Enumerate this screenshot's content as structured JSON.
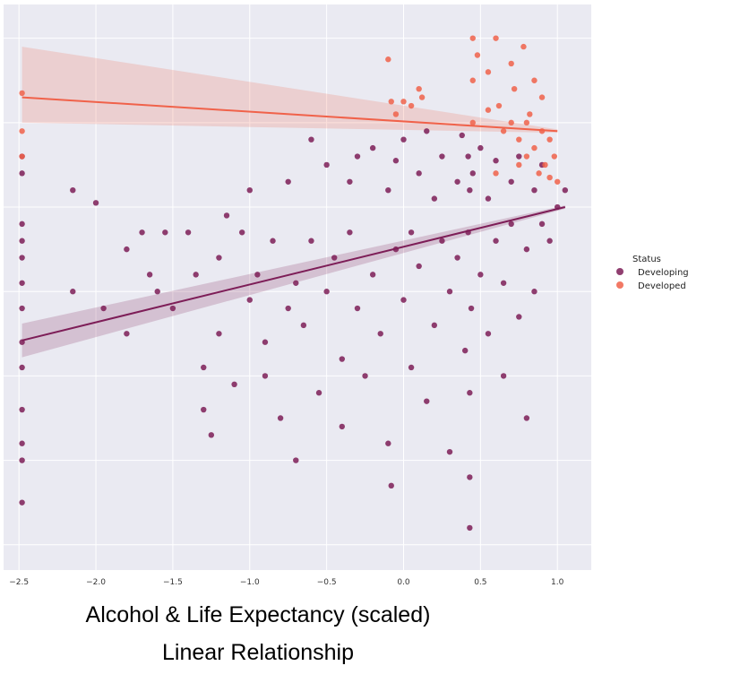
{
  "caption": {
    "line1": "Alcohol & Life Expectancy (scaled)",
    "line2": "Linear Relationship"
  },
  "chart_data": {
    "type": "scatter",
    "title": "",
    "xlabel": "",
    "ylabel": "",
    "xlim": [
      -2.6,
      1.22
    ],
    "ylim": [
      -4.3,
      2.4
    ],
    "x_ticks": [
      -2.5,
      -2.0,
      -1.5,
      -1.0,
      -0.5,
      0.0,
      0.5,
      1.0
    ],
    "x_tick_labels": [
      "−2.5",
      "−2.0",
      "−1.5",
      "−1.0",
      "−0.5",
      "0.0",
      "0.5",
      "1.0"
    ],
    "y_gridlines": [
      -4,
      -3,
      -2,
      -1,
      0,
      1,
      2
    ],
    "grid": true,
    "background_color": "#eaeaf2",
    "legend": {
      "title": "Status",
      "placement": "right",
      "entries": [
        "Developing",
        "Developed"
      ]
    },
    "series": [
      {
        "name": "Developing",
        "color": "#7d1d57",
        "regression": {
          "x": [
            -2.48,
            1.05
          ],
          "y": [
            -1.58,
            0.0
          ]
        },
        "ci_upper": [
          -1.38,
          0.02
        ],
        "ci_lower": [
          -1.78,
          -0.02
        ],
        "points": [
          [
            -2.48,
            -0.6
          ],
          [
            -2.48,
            -0.2
          ],
          [
            -2.48,
            0.4
          ],
          [
            -2.48,
            0.6
          ],
          [
            -2.48,
            -0.9
          ],
          [
            -2.48,
            -1.2
          ],
          [
            -2.48,
            -1.6
          ],
          [
            -2.48,
            -2.4
          ],
          [
            -2.48,
            -3.0
          ],
          [
            -2.48,
            -3.5
          ],
          [
            -2.48,
            -2.8
          ],
          [
            -2.48,
            -1.9
          ],
          [
            -2.48,
            -0.4
          ],
          [
            -2.15,
            0.2
          ],
          [
            -2.15,
            -1.0
          ],
          [
            -2.0,
            0.05
          ],
          [
            -1.95,
            -1.2
          ],
          [
            -1.8,
            -0.5
          ],
          [
            -1.8,
            -1.5
          ],
          [
            -1.7,
            -0.3
          ],
          [
            -1.65,
            -0.8
          ],
          [
            -1.6,
            -1.0
          ],
          [
            -1.55,
            -0.3
          ],
          [
            -1.5,
            -1.2
          ],
          [
            -1.4,
            -0.3
          ],
          [
            -1.35,
            -0.8
          ],
          [
            -1.3,
            -1.9
          ],
          [
            -1.3,
            -2.4
          ],
          [
            -1.25,
            -2.7
          ],
          [
            -1.2,
            -0.6
          ],
          [
            -1.2,
            -1.5
          ],
          [
            -1.15,
            -0.1
          ],
          [
            -1.1,
            -2.1
          ],
          [
            -1.05,
            -0.3
          ],
          [
            -1.0,
            0.2
          ],
          [
            -1.0,
            -1.1
          ],
          [
            -0.95,
            -0.8
          ],
          [
            -0.9,
            -1.6
          ],
          [
            -0.9,
            -2.0
          ],
          [
            -0.85,
            -0.4
          ],
          [
            -0.8,
            -2.5
          ],
          [
            -0.75,
            -1.2
          ],
          [
            -0.75,
            0.3
          ],
          [
            -0.7,
            -0.9
          ],
          [
            -0.7,
            -3.0
          ],
          [
            -0.65,
            -1.4
          ],
          [
            -0.6,
            -0.4
          ],
          [
            -0.6,
            0.8
          ],
          [
            -0.55,
            -2.2
          ],
          [
            -0.5,
            -1.0
          ],
          [
            -0.5,
            0.5
          ],
          [
            -0.45,
            -0.6
          ],
          [
            -0.4,
            -1.8
          ],
          [
            -0.4,
            -2.6
          ],
          [
            -0.35,
            0.3
          ],
          [
            -0.35,
            -0.3
          ],
          [
            -0.3,
            -1.2
          ],
          [
            -0.3,
            0.6
          ],
          [
            -0.25,
            -2.0
          ],
          [
            -0.2,
            -0.8
          ],
          [
            -0.2,
            0.7
          ],
          [
            -0.15,
            -1.5
          ],
          [
            -0.1,
            0.2
          ],
          [
            -0.1,
            -2.8
          ],
          [
            -0.08,
            -3.3
          ],
          [
            -0.05,
            0.55
          ],
          [
            -0.05,
            -0.5
          ],
          [
            0.0,
            -1.1
          ],
          [
            0.0,
            0.8
          ],
          [
            0.05,
            -0.3
          ],
          [
            0.05,
            -1.9
          ],
          [
            0.1,
            0.4
          ],
          [
            0.1,
            -0.7
          ],
          [
            0.15,
            -2.3
          ],
          [
            0.15,
            0.9
          ],
          [
            0.2,
            -1.4
          ],
          [
            0.2,
            0.1
          ],
          [
            0.25,
            -0.4
          ],
          [
            0.25,
            0.6
          ],
          [
            0.3,
            -1.0
          ],
          [
            0.3,
            -2.9
          ],
          [
            0.35,
            0.3
          ],
          [
            0.35,
            -0.6
          ],
          [
            0.38,
            0.85
          ],
          [
            0.4,
            -1.7
          ],
          [
            0.42,
            0.6
          ],
          [
            0.42,
            -0.3
          ],
          [
            0.43,
            -2.2
          ],
          [
            0.43,
            -3.2
          ],
          [
            0.43,
            -3.8
          ],
          [
            0.43,
            0.2
          ],
          [
            0.44,
            -1.2
          ],
          [
            0.45,
            0.4
          ],
          [
            0.5,
            -0.8
          ],
          [
            0.5,
            0.7
          ],
          [
            0.55,
            -1.5
          ],
          [
            0.55,
            0.1
          ],
          [
            0.6,
            -0.4
          ],
          [
            0.6,
            0.55
          ],
          [
            0.65,
            -2.0
          ],
          [
            0.65,
            -0.9
          ],
          [
            0.7,
            0.3
          ],
          [
            0.7,
            -0.2
          ],
          [
            0.75,
            -1.3
          ],
          [
            0.75,
            0.6
          ],
          [
            0.8,
            -0.5
          ],
          [
            0.8,
            -2.5
          ],
          [
            0.85,
            0.2
          ],
          [
            0.85,
            -1.0
          ],
          [
            0.9,
            -0.2
          ],
          [
            0.9,
            0.5
          ],
          [
            0.95,
            -0.4
          ],
          [
            1.0,
            0.0
          ],
          [
            1.05,
            0.2
          ]
        ]
      },
      {
        "name": "Developed",
        "color": "#f0624a",
        "regression": {
          "x": [
            -2.48,
            1.0
          ],
          "y": [
            1.3,
            0.9
          ]
        },
        "ci_upper": [
          1.9,
          0.92
        ],
        "ci_lower": [
          1.0,
          0.88
        ],
        "points": [
          [
            -2.48,
            1.35
          ],
          [
            -2.48,
            0.9
          ],
          [
            -2.48,
            0.6
          ],
          [
            -0.1,
            1.75
          ],
          [
            -0.08,
            1.25
          ],
          [
            -0.05,
            1.1
          ],
          [
            0.0,
            1.25
          ],
          [
            0.05,
            1.2
          ],
          [
            0.1,
            1.4
          ],
          [
            0.12,
            1.3
          ],
          [
            0.45,
            2.0
          ],
          [
            0.45,
            1.5
          ],
          [
            0.45,
            1.0
          ],
          [
            0.48,
            1.8
          ],
          [
            0.55,
            1.6
          ],
          [
            0.6,
            2.0
          ],
          [
            0.62,
            1.2
          ],
          [
            0.65,
            0.9
          ],
          [
            0.7,
            1.7
          ],
          [
            0.72,
            1.4
          ],
          [
            0.75,
            0.8
          ],
          [
            0.78,
            1.9
          ],
          [
            0.8,
            0.6
          ],
          [
            0.82,
            1.1
          ],
          [
            0.85,
            0.7
          ],
          [
            0.85,
            1.5
          ],
          [
            0.88,
            0.4
          ],
          [
            0.9,
            0.9
          ],
          [
            0.9,
            1.3
          ],
          [
            0.92,
            0.5
          ],
          [
            0.95,
            0.8
          ],
          [
            0.95,
            0.35
          ],
          [
            0.98,
            0.6
          ],
          [
            1.0,
            0.3
          ],
          [
            0.7,
            1.0
          ],
          [
            0.8,
            1.0
          ],
          [
            0.75,
            0.5
          ],
          [
            0.6,
            0.4
          ],
          [
            0.55,
            1.15
          ]
        ]
      }
    ]
  }
}
